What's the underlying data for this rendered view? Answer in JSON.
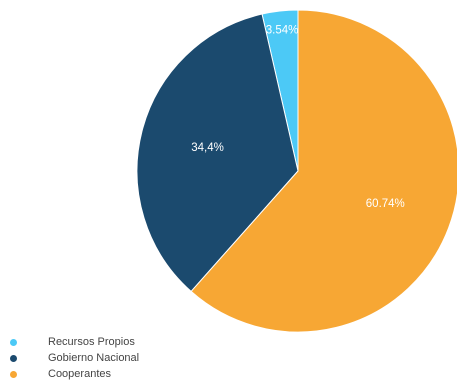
{
  "chart_data": {
    "type": "pie",
    "title": "",
    "legend_position": "bottom-left",
    "series": [
      {
        "name": "Recursos Propios",
        "value": 3.54,
        "label": "3.54%",
        "color": "#4cc9f6"
      },
      {
        "name": "Gobierno Nacional",
        "value": 34.4,
        "label": "34,4%",
        "color": "#1b4a6e"
      },
      {
        "name": "Cooperantes",
        "value": 60.74,
        "label": "60.74%",
        "color": "#f7a734"
      }
    ]
  }
}
